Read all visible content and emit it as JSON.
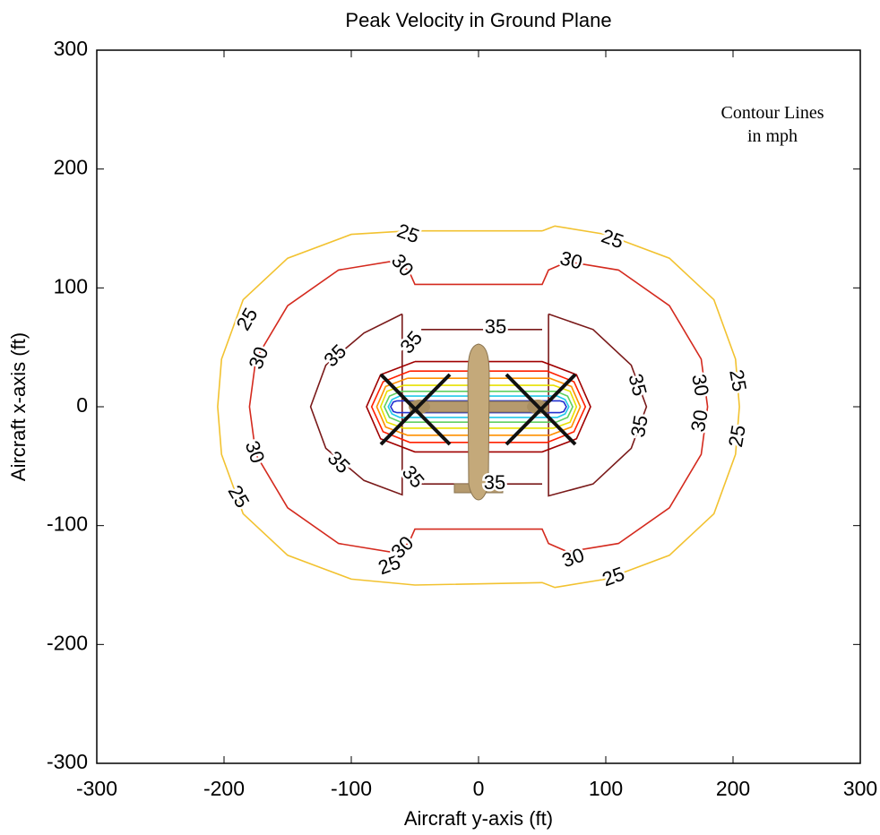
{
  "chart_data": {
    "type": "contour",
    "title": "Peak Velocity in Ground Plane",
    "x_label": "Aircraft y-axis (ft)",
    "y_label": "Aircraft x-axis (ft)",
    "annotation": [
      "Contour Lines",
      "in mph"
    ],
    "xlim": [
      -300,
      300
    ],
    "ylim": [
      -300,
      300
    ],
    "xticks": [
      -300,
      -200,
      -100,
      0,
      100,
      200,
      300
    ],
    "yticks": [
      -300,
      -200,
      -100,
      0,
      100,
      200,
      300
    ],
    "contours": [
      {
        "level": 25,
        "color": "#f2c230",
        "x": [
          50,
          60,
          100,
          150,
          185,
          202,
          205,
          202,
          185,
          150,
          100,
          60,
          50,
          -50,
          -100,
          -150,
          -185,
          -202,
          -205,
          -202,
          -185,
          -150,
          -100,
          -55,
          50
        ],
        "y": [
          148,
          152,
          145,
          125,
          90,
          40,
          0,
          -40,
          -90,
          -125,
          -145,
          -152,
          -148,
          -150,
          -145,
          -125,
          -90,
          -40,
          0,
          40,
          90,
          125,
          145,
          148,
          148
        ]
      },
      {
        "level": 30,
        "color": "#d42a1e",
        "x": [
          -55,
          -70,
          -110,
          -150,
          -175,
          -180,
          -175,
          -150,
          -110,
          -70,
          -55,
          -50,
          50,
          55,
          70,
          110,
          150,
          175,
          180,
          175,
          150,
          110,
          70,
          55,
          50,
          -50,
          -55
        ],
        "y": [
          115,
          122,
          115,
          85,
          40,
          0,
          -40,
          -85,
          -115,
          -122,
          -115,
          -103,
          -103,
          -115,
          -122,
          -115,
          -85,
          -40,
          0,
          40,
          85,
          115,
          122,
          115,
          103,
          103,
          115
        ]
      },
      {
        "level": 35,
        "color": "#7a1a1a",
        "x": [
          -60,
          -90,
          -120,
          -132,
          -120,
          -90,
          -60,
          -60,
          null,
          -45,
          50,
          null,
          -45,
          50,
          null,
          55,
          90,
          120,
          132,
          120,
          90,
          55,
          55
        ],
        "y": [
          78,
          62,
          35,
          0,
          -35,
          -62,
          -74,
          78,
          null,
          65,
          65,
          null,
          -65,
          -65,
          null,
          78,
          65,
          35,
          0,
          -35,
          -65,
          -75,
          78
        ]
      },
      {
        "color": "#a00000",
        "x": [
          -50,
          50,
          77,
          88,
          77,
          50,
          -50,
          -77,
          -88,
          -77,
          -50
        ],
        "y": [
          38,
          38,
          27,
          0,
          -27,
          -38,
          -38,
          -27,
          0,
          27,
          38
        ]
      },
      {
        "color": "#ff2000",
        "x": [
          -54,
          54,
          75,
          84,
          75,
          54,
          -54,
          -75,
          -84,
          -75,
          -54
        ],
        "y": [
          30,
          30,
          21,
          0,
          -21,
          -30,
          -30,
          -21,
          0,
          21,
          30
        ]
      },
      {
        "color": "#ff9000",
        "x": [
          -56,
          56,
          73,
          80,
          73,
          56,
          -56,
          -73,
          -80,
          -73,
          -56
        ],
        "y": [
          24,
          24,
          17,
          0,
          -17,
          -24,
          -24,
          -17,
          0,
          17,
          24
        ]
      },
      {
        "color": "#e8e000",
        "x": [
          -59,
          59,
          72,
          77,
          72,
          59,
          -59,
          -72,
          -77,
          -72,
          -59
        ],
        "y": [
          18,
          18,
          13,
          0,
          -13,
          -18,
          -18,
          -13,
          0,
          13,
          18
        ]
      },
      {
        "color": "#60d060",
        "x": [
          -61,
          61,
          70,
          74,
          70,
          61,
          -61,
          -70,
          -74,
          -70,
          -61
        ],
        "y": [
          13,
          13,
          9,
          0,
          -9,
          -13,
          -13,
          -9,
          0,
          9,
          13
        ]
      },
      {
        "color": "#20c8e8",
        "x": [
          -62,
          62,
          68,
          71,
          68,
          62,
          -62,
          -68,
          -71,
          -68,
          -62
        ],
        "y": [
          9,
          9,
          6,
          0,
          -6,
          -9,
          -9,
          -6,
          0,
          6,
          9
        ]
      },
      {
        "color": "#2030d0",
        "x": [
          -64,
          64,
          67,
          69,
          67,
          64,
          -64,
          -67,
          -69,
          -67,
          -64
        ],
        "y": [
          5,
          5,
          4,
          0,
          -4,
          -5,
          -5,
          -4,
          0,
          4,
          5
        ]
      }
    ]
  }
}
